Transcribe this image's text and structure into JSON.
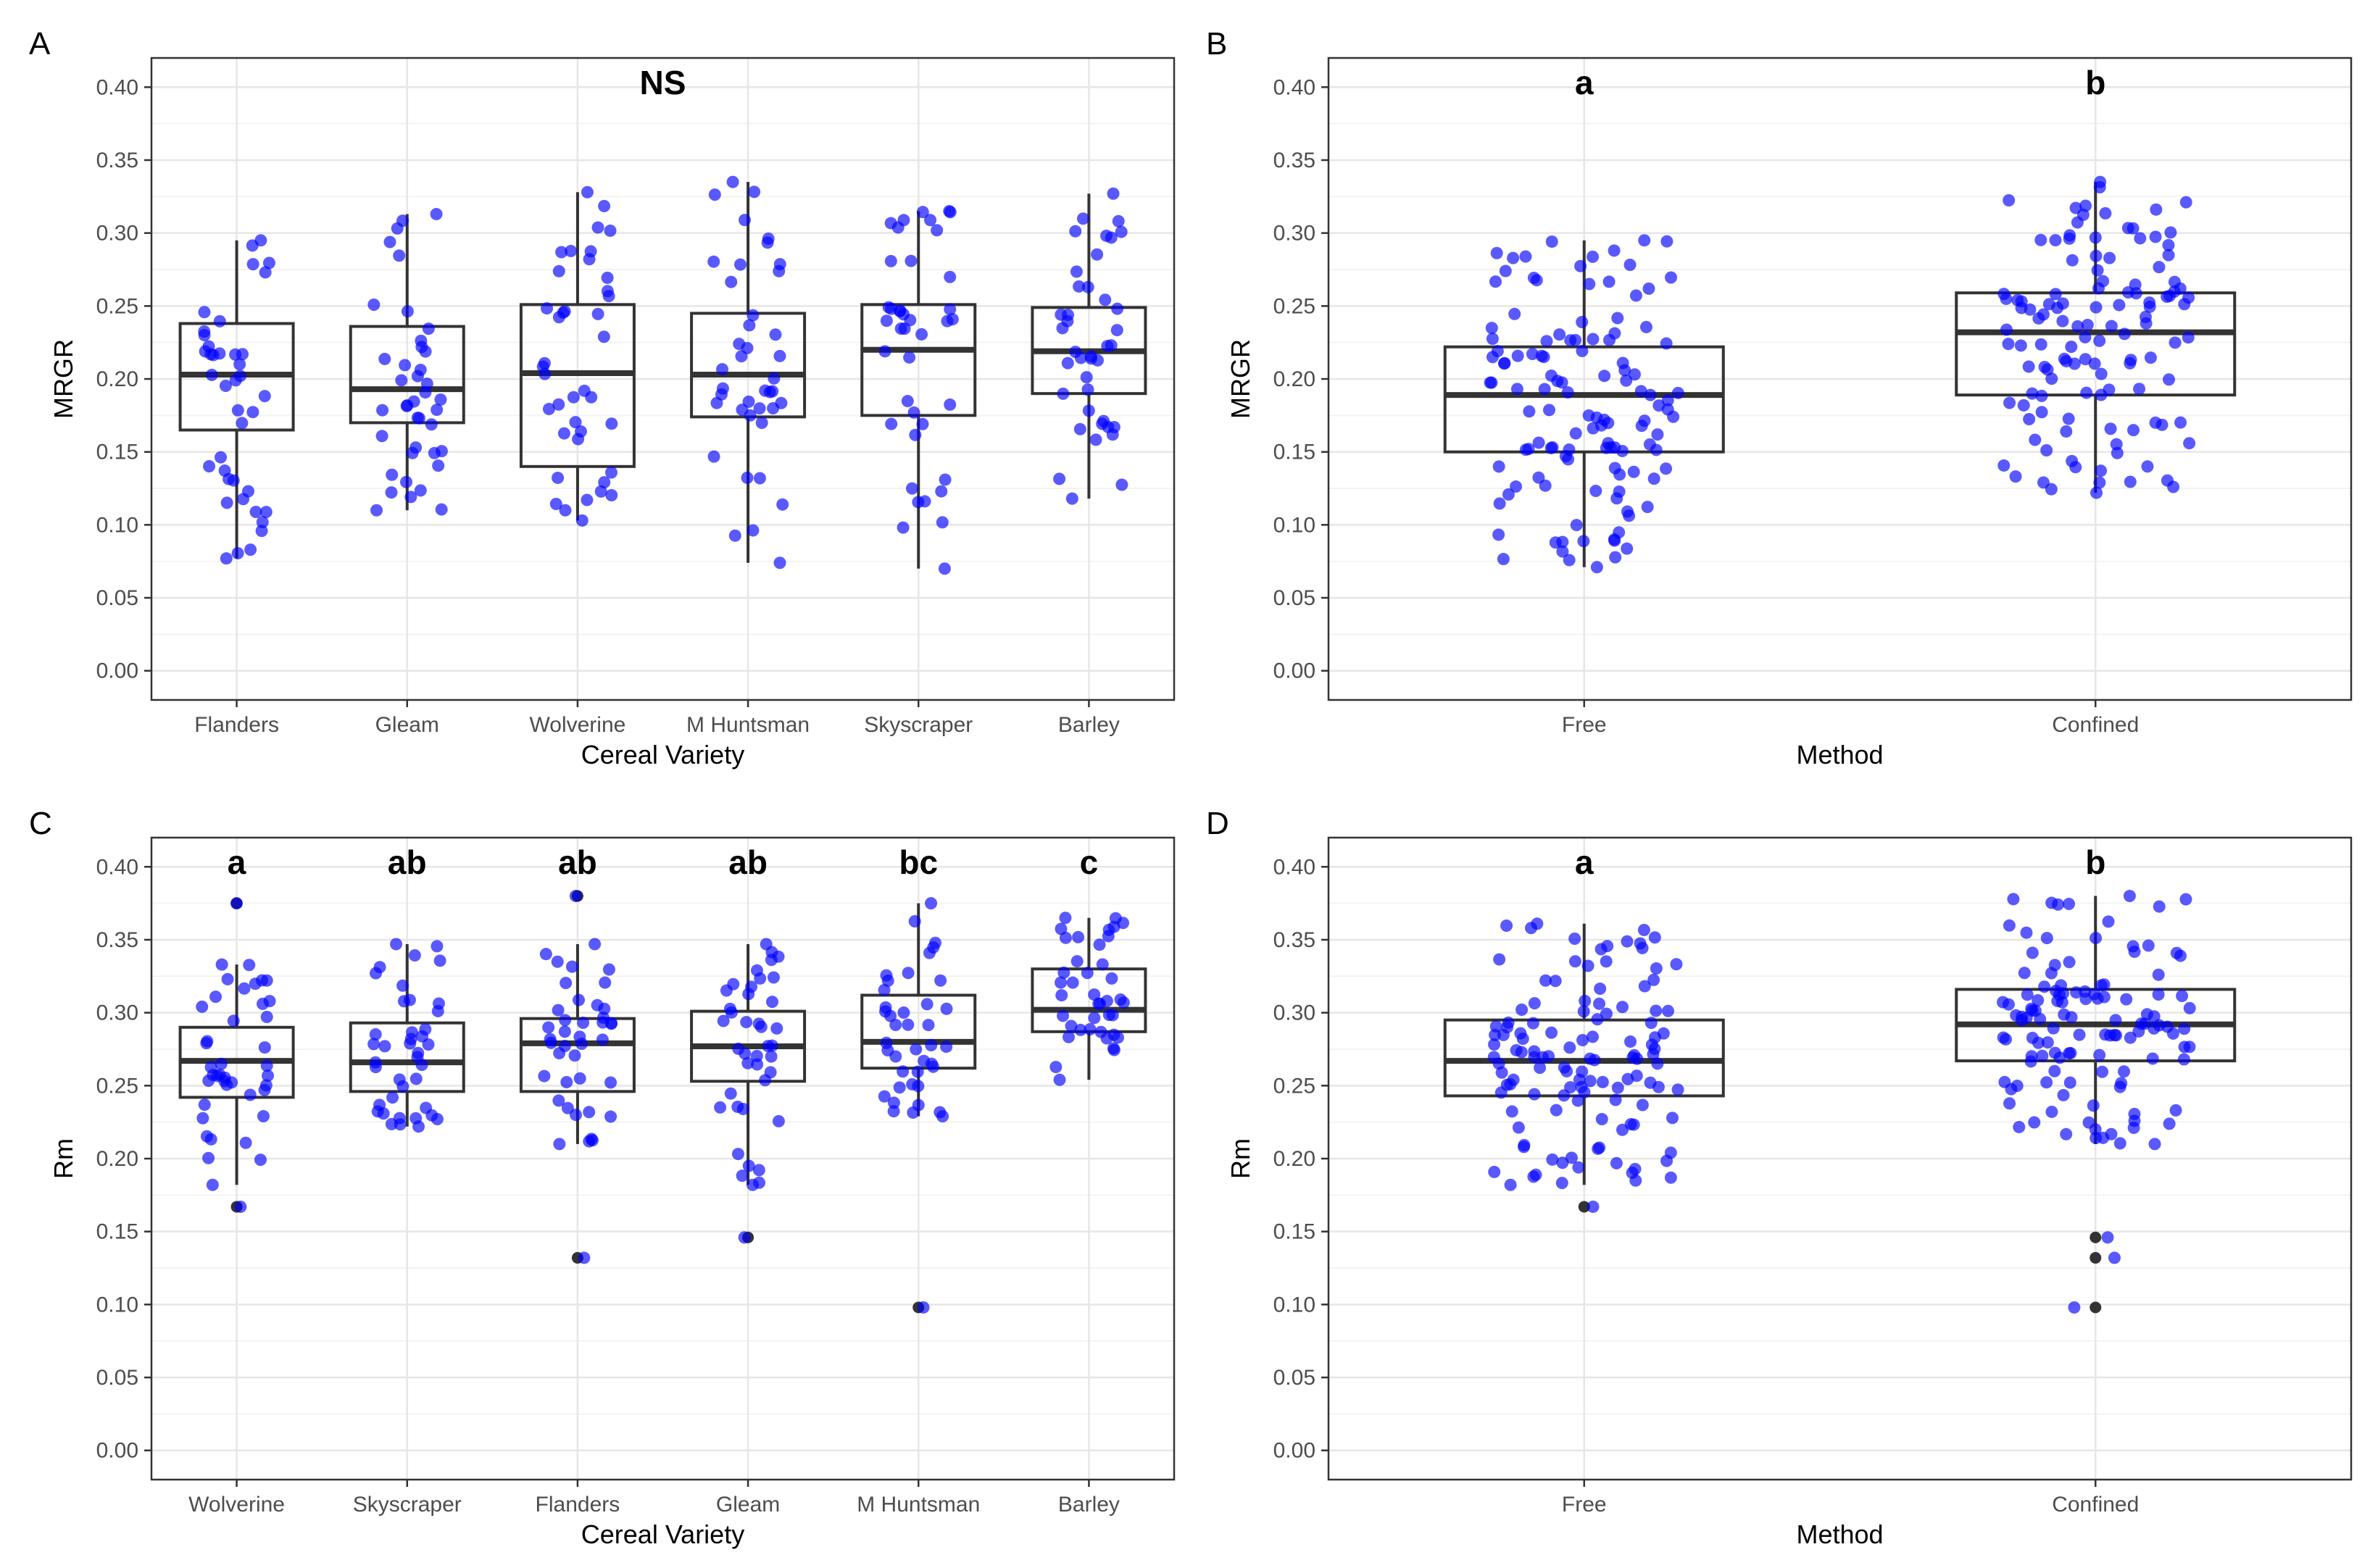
{
  "figure": {
    "panel_labels": [
      "A",
      "B",
      "C",
      "D"
    ]
  },
  "colors": {
    "points": "#0000ff",
    "outlier": "#333333",
    "box": "#333333",
    "grid_major": "#e6e6e6",
    "grid_minor": "#f3f3f3",
    "panel_border": "#333333",
    "text": "#000000",
    "tick_text": "#4d4d4d"
  },
  "chart_data": [
    {
      "panel": "A",
      "type": "box",
      "xlabel": "Cereal Variety",
      "ylabel": "MRGR",
      "ylim": [
        -0.02,
        0.42
      ],
      "yticks": [
        "0.00",
        "0.05",
        "0.10",
        "0.15",
        "0.20",
        "0.25",
        "0.30",
        "0.35",
        "0.40"
      ],
      "categories": [
        "Flanders",
        "Gleam",
        "Wolverine",
        "M Huntsman",
        "Skyscraper",
        "Barley"
      ],
      "letters": [
        "NS"
      ],
      "letters_centered": true,
      "boxes": [
        {
          "min": 0.077,
          "q1": 0.165,
          "median": 0.203,
          "q3": 0.238,
          "max": 0.295,
          "outliers": []
        },
        {
          "min": 0.11,
          "q1": 0.17,
          "median": 0.193,
          "q3": 0.236,
          "max": 0.313,
          "outliers": []
        },
        {
          "min": 0.103,
          "q1": 0.14,
          "median": 0.204,
          "q3": 0.251,
          "max": 0.328,
          "outliers": []
        },
        {
          "min": 0.074,
          "q1": 0.174,
          "median": 0.203,
          "q3": 0.245,
          "max": 0.335,
          "outliers": []
        },
        {
          "min": 0.07,
          "q1": 0.175,
          "median": 0.22,
          "q3": 0.251,
          "max": 0.315,
          "outliers": []
        },
        {
          "min": 0.118,
          "q1": 0.19,
          "median": 0.219,
          "q3": 0.249,
          "max": 0.327,
          "outliers": []
        }
      ],
      "points_per_group": 40,
      "jitter_seed": 11
    },
    {
      "panel": "B",
      "type": "box",
      "xlabel": "Method",
      "ylabel": "MRGR",
      "ylim": [
        -0.02,
        0.42
      ],
      "yticks": [
        "0.00",
        "0.05",
        "0.10",
        "0.15",
        "0.20",
        "0.25",
        "0.30",
        "0.35",
        "0.40"
      ],
      "categories": [
        "Free",
        "Confined"
      ],
      "letters": [
        "a",
        "b"
      ],
      "letters_centered": false,
      "boxes": [
        {
          "min": 0.071,
          "q1": 0.15,
          "median": 0.189,
          "q3": 0.222,
          "max": 0.295,
          "outliers": []
        },
        {
          "min": 0.122,
          "q1": 0.189,
          "median": 0.232,
          "q3": 0.259,
          "max": 0.335,
          "outliers": []
        }
      ],
      "points_per_group": 120,
      "jitter_seed": 23
    },
    {
      "panel": "C",
      "type": "box",
      "xlabel": "Cereal Variety",
      "ylabel": "Rm",
      "ylim": [
        -0.02,
        0.42
      ],
      "yticks": [
        "0.00",
        "0.05",
        "0.10",
        "0.15",
        "0.20",
        "0.25",
        "0.30",
        "0.35",
        "0.40"
      ],
      "categories": [
        "Wolverine",
        "Skyscraper",
        "Flanders",
        "Gleam",
        "M Huntsman",
        "Barley"
      ],
      "letters": [
        "a",
        "ab",
        "ab",
        "ab",
        "bc",
        "c"
      ],
      "letters_centered": false,
      "boxes": [
        {
          "min": 0.182,
          "q1": 0.242,
          "median": 0.267,
          "q3": 0.29,
          "max": 0.333,
          "outliers": [
            0.167,
            0.375
          ]
        },
        {
          "min": 0.222,
          "q1": 0.246,
          "median": 0.266,
          "q3": 0.293,
          "max": 0.347,
          "outliers": []
        },
        {
          "min": 0.21,
          "q1": 0.246,
          "median": 0.279,
          "q3": 0.296,
          "max": 0.347,
          "outliers": [
            0.132,
            0.38
          ]
        },
        {
          "min": 0.182,
          "q1": 0.253,
          "median": 0.277,
          "q3": 0.301,
          "max": 0.347,
          "outliers": [
            0.146
          ]
        },
        {
          "min": 0.229,
          "q1": 0.262,
          "median": 0.28,
          "q3": 0.312,
          "max": 0.375,
          "outliers": [
            0.098
          ]
        },
        {
          "min": 0.254,
          "q1": 0.287,
          "median": 0.302,
          "q3": 0.33,
          "max": 0.365,
          "outliers": []
        }
      ],
      "points_per_group": 40,
      "jitter_seed": 37
    },
    {
      "panel": "D",
      "type": "box",
      "xlabel": "Method",
      "ylabel": "Rm",
      "ylim": [
        -0.02,
        0.42
      ],
      "yticks": [
        "0.00",
        "0.05",
        "0.10",
        "0.15",
        "0.20",
        "0.25",
        "0.30",
        "0.35",
        "0.40"
      ],
      "categories": [
        "Free",
        "Confined"
      ],
      "letters": [
        "a",
        "b"
      ],
      "letters_centered": false,
      "boxes": [
        {
          "min": 0.182,
          "q1": 0.243,
          "median": 0.267,
          "q3": 0.295,
          "max": 0.361,
          "outliers": [
            0.167
          ]
        },
        {
          "min": 0.21,
          "q1": 0.267,
          "median": 0.292,
          "q3": 0.316,
          "max": 0.38,
          "outliers": [
            0.098,
            0.132,
            0.146
          ]
        }
      ],
      "points_per_group": 120,
      "jitter_seed": 53
    }
  ]
}
